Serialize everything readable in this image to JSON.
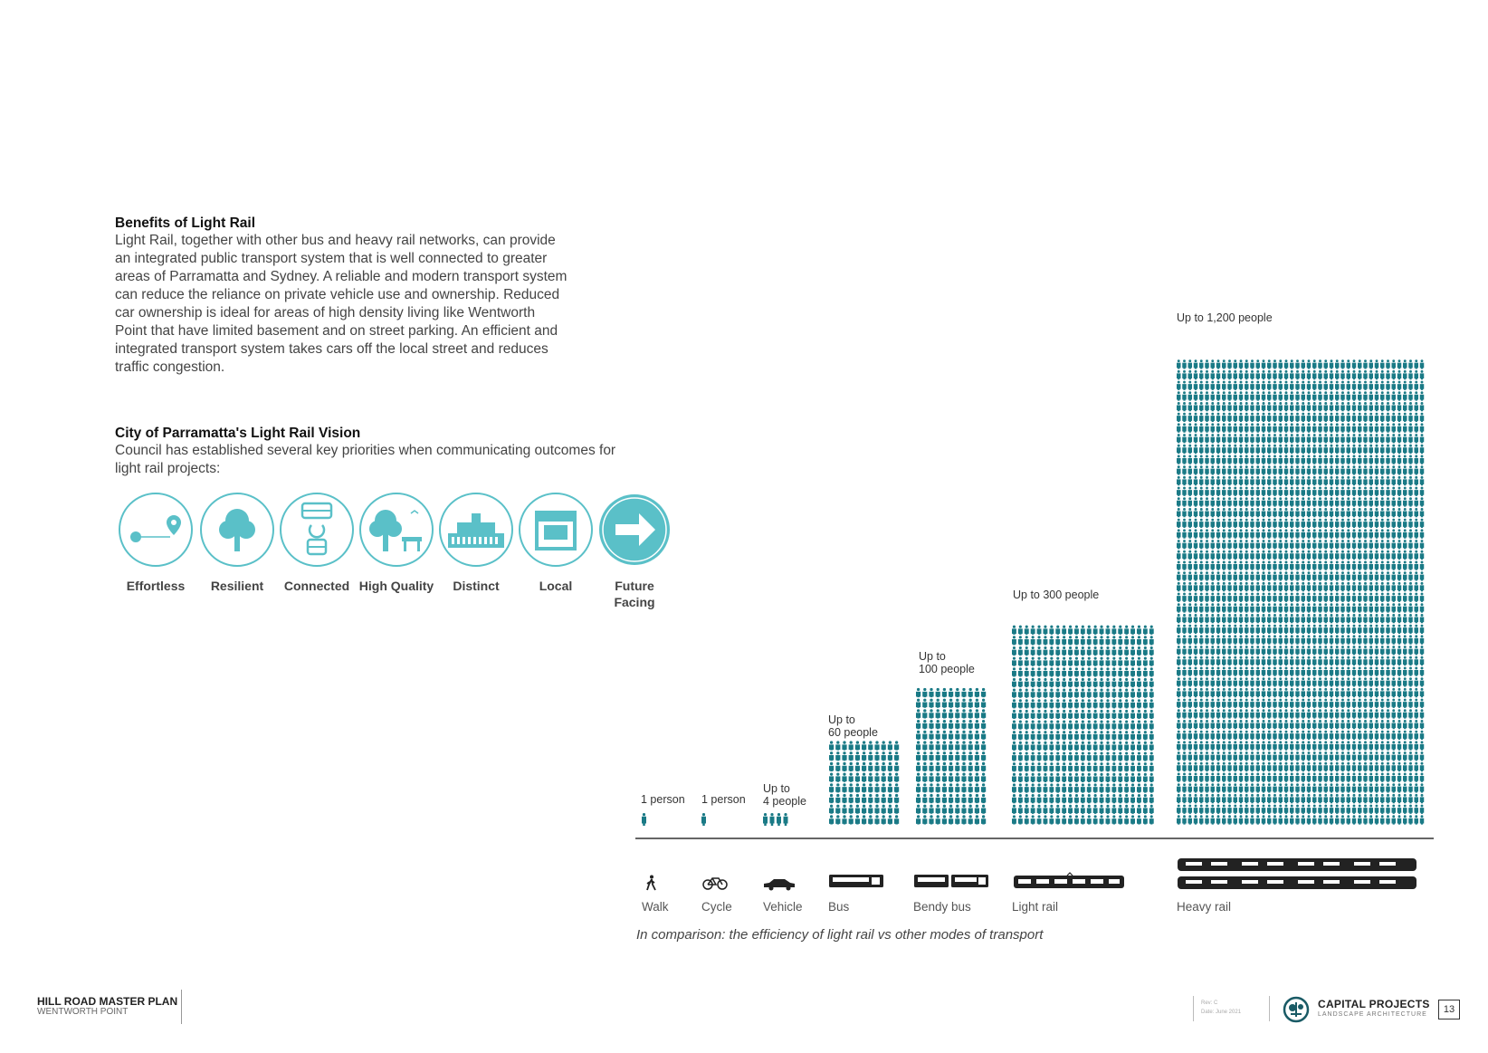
{
  "benefits": {
    "heading": "Benefits of Light Rail",
    "lines": [
      "Light Rail, together with other bus and heavy rail networks, can provide",
      "an integrated public transport system that is well connected to greater",
      "areas of Parramatta and Sydney. A reliable and modern transport system",
      "can reduce the reliance on private vehicle use and ownership. Reduced",
      "car ownership is ideal for areas of high density living like Wentworth",
      "Point that have limited basement and on street parking. An efficient and",
      "integrated transport system takes cars off the local street and reduces",
      "traffic congestion."
    ]
  },
  "vision": {
    "heading": "City of Parramatta's Light Rail Vision",
    "lines": [
      "Council has established several key priorities when communicating outcomes for",
      "light rail projects:"
    ],
    "priorities": [
      {
        "label": "Effortless",
        "icon": "route-pin-icon"
      },
      {
        "label": "Resilient",
        "icon": "tree-icon"
      },
      {
        "label": "Connected",
        "icon": "bus-train-icon"
      },
      {
        "label": "High Quality",
        "icon": "tree-bench-icon"
      },
      {
        "label": "Distinct",
        "icon": "landmark-building-icon"
      },
      {
        "label": "Local",
        "icon": "shopfront-icon"
      },
      {
        "label": "Future\nFacing",
        "icon": "arrow-right-icon"
      }
    ],
    "accent": "#5ac0c8"
  },
  "chart_data": {
    "type": "pictogram-bar",
    "caption": "In comparison: the efficiency of light rail vs other modes of transport",
    "color": "#1a7a86",
    "categories": [
      "Walk",
      "Cycle",
      "Vehicle",
      "Bus",
      "Bendy bus",
      "Light rail",
      "Heavy rail"
    ],
    "labels": [
      "1 person",
      "1 person",
      "Up to\n4 people",
      "Up to\n60 people",
      "Up to\n100 people",
      "Up to 300 people",
      "Up to 1,200 people"
    ],
    "values": [
      1,
      1,
      4,
      60,
      100,
      300,
      1200
    ],
    "icons": [
      "walk-icon",
      "cycle-icon",
      "car-icon",
      "bus-icon",
      "bendy-bus-icon",
      "light-rail-icon",
      "heavy-rail-icon"
    ]
  },
  "footer": {
    "title": "HILL ROAD MASTER PLAN",
    "subtitle": "WENTWORTH POINT",
    "rev": "Rev: C",
    "date": "Date: June 2021",
    "brand": "CAPITAL PROJECTS",
    "brand_sub": "LANDSCAPE ARCHITECTURE",
    "page": "13"
  }
}
